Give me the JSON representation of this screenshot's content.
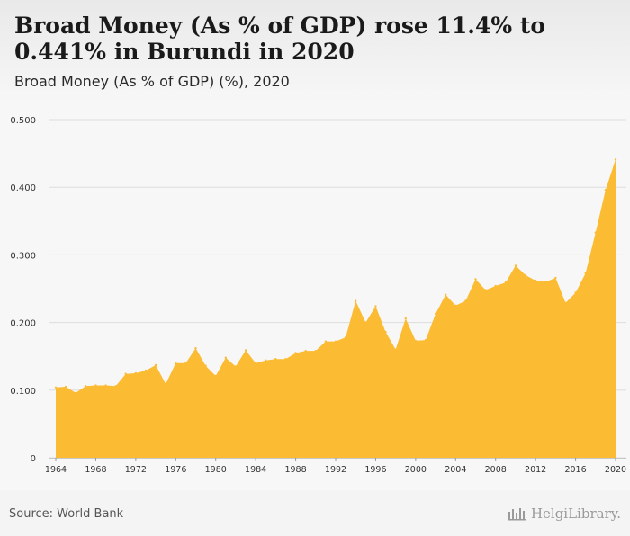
{
  "header": {
    "title": "Broad Money (As % of GDP) rose 11.4% to 0.441% in Burundi in 2020",
    "subtitle": "Broad Money (As % of GDP) (%), 2020"
  },
  "footer": {
    "source": "Source: World Bank",
    "brand": "HelgiLibrary."
  },
  "colors": {
    "area": "#fbbb32",
    "grid": "#dddddd",
    "axis_text": "#333333"
  },
  "chart_data": {
    "type": "area",
    "title": "Broad Money (As % of GDP) rose 11.4% to 0.441% in Burundi in 2020",
    "subtitle": "Broad Money (As % of GDP) (%), 2020",
    "xlabel": "",
    "ylabel": "",
    "ylim": [
      0,
      0.5
    ],
    "yticks": [
      0,
      0.1,
      0.2,
      0.3,
      0.4,
      0.5
    ],
    "ytick_labels": [
      "0",
      "0.100",
      "0.200",
      "0.300",
      "0.400",
      "0.500"
    ],
    "xlim": [
      1964,
      2020
    ],
    "xticks": [
      1964,
      1968,
      1972,
      1976,
      1980,
      1984,
      1988,
      1992,
      1996,
      2000,
      2004,
      2008,
      2012,
      2016,
      2020
    ],
    "grid": true,
    "legend": "none",
    "x": [
      1964,
      1965,
      1966,
      1967,
      1968,
      1969,
      1970,
      1971,
      1972,
      1973,
      1974,
      1975,
      1976,
      1977,
      1978,
      1979,
      1980,
      1981,
      1982,
      1983,
      1984,
      1985,
      1986,
      1987,
      1988,
      1989,
      1990,
      1991,
      1992,
      1993,
      1994,
      1995,
      1996,
      1997,
      1998,
      1999,
      2000,
      2001,
      2002,
      2003,
      2004,
      2005,
      2006,
      2007,
      2008,
      2009,
      2010,
      2011,
      2012,
      2013,
      2014,
      2015,
      2016,
      2017,
      2018,
      2019,
      2020
    ],
    "series": [
      {
        "values": [
          0.104,
          0.105,
          0.096,
          0.106,
          0.107,
          0.107,
          0.106,
          0.124,
          0.125,
          0.129,
          0.137,
          0.109,
          0.14,
          0.14,
          0.162,
          0.136,
          0.121,
          0.148,
          0.135,
          0.159,
          0.14,
          0.144,
          0.146,
          0.146,
          0.155,
          0.158,
          0.158,
          0.172,
          0.172,
          0.178,
          0.232,
          0.2,
          0.224,
          0.186,
          0.16,
          0.206,
          0.173,
          0.174,
          0.213,
          0.241,
          0.225,
          0.232,
          0.264,
          0.248,
          0.254,
          0.259,
          0.284,
          0.27,
          0.262,
          0.26,
          0.266,
          0.229,
          0.244,
          0.273,
          0.333,
          0.396,
          0.441
        ]
      }
    ]
  }
}
